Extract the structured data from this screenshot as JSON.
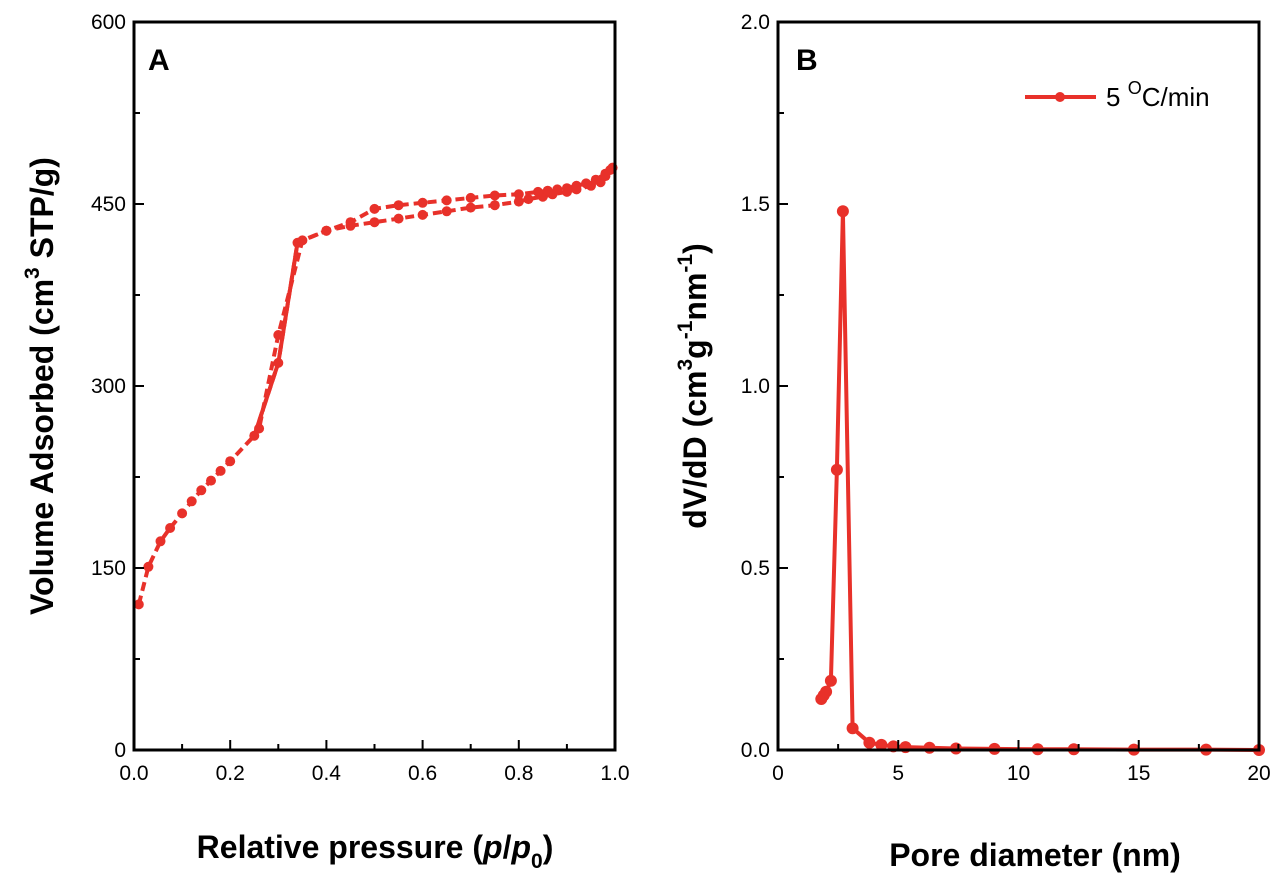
{
  "colors": {
    "series": "#e8312a",
    "axis": "#000000"
  },
  "chart_data": [
    {
      "type": "line",
      "panel_label": "A",
      "xlabel": {
        "prefix": "Relative pressure (",
        "p": "p",
        "slash": "/",
        "p0": "p",
        "sub0": "0",
        "suffix": ")"
      },
      "ylabel": {
        "prefix": "Volume Adsorbed (cm",
        "sup": "3",
        "suffix": " STP/g)"
      },
      "xlim": [
        0,
        1.0
      ],
      "ylim": [
        0,
        600
      ],
      "xticks": [
        "0.0",
        "0.2",
        "0.4",
        "0.6",
        "0.8",
        "1.0"
      ],
      "yticks": [
        "0",
        "150",
        "300",
        "450",
        "600"
      ],
      "series": [
        {
          "role": "adsorption",
          "x": [
            0.01,
            0.03,
            0.055,
            0.075,
            0.1,
            0.12,
            0.14,
            0.16,
            0.18,
            0.2,
            0.25,
            0.3,
            0.34,
            0.4,
            0.45,
            0.5,
            0.55,
            0.6,
            0.65,
            0.7,
            0.75,
            0.8,
            0.82,
            0.85,
            0.87,
            0.9,
            0.92,
            0.95,
            0.97,
            0.98,
            0.99
          ],
          "y": [
            120,
            151,
            172,
            183,
            195,
            205,
            214,
            222,
            230,
            238,
            259,
            319,
            418,
            428,
            432,
            435,
            438,
            441,
            444,
            447,
            449,
            452,
            454,
            456,
            458,
            460,
            462,
            465,
            468,
            473,
            478
          ]
        },
        {
          "role": "desorption",
          "x": [
            0.995,
            0.98,
            0.96,
            0.94,
            0.92,
            0.9,
            0.88,
            0.86,
            0.84,
            0.8,
            0.75,
            0.7,
            0.65,
            0.6,
            0.55,
            0.5,
            0.45,
            0.4,
            0.35,
            0.3,
            0.26
          ],
          "y": [
            480,
            475,
            470,
            467,
            465,
            463,
            462,
            461,
            460,
            458,
            457,
            455,
            453,
            451,
            449,
            446,
            435,
            428,
            420,
            342,
            265
          ]
        }
      ]
    },
    {
      "type": "line",
      "panel_label": "B",
      "xlabel": "Pore diameter (nm)",
      "ylabel": {
        "prefix": "dV/dD (cm",
        "sup1": "3",
        "mid1": "g",
        "sup2": "-1",
        "mid2": "nm",
        "sup3": "-1",
        "suffix": ")"
      },
      "xlim": [
        0,
        20
      ],
      "ylim": [
        0,
        2.0
      ],
      "xticks": [
        "0",
        "5",
        "10",
        "15",
        "20"
      ],
      "yticks": [
        "0.0",
        "0.5",
        "1.0",
        "1.5",
        "2.0"
      ],
      "legend": {
        "text_pre": "5 ",
        "sup": "O",
        "text_post": "C/min",
        "position": "top-right"
      },
      "series": [
        {
          "name": "5 OC/min",
          "x": [
            1.8,
            1.9,
            2.0,
            2.2,
            2.45,
            2.7,
            3.1,
            3.8,
            4.3,
            4.8,
            5.3,
            6.3,
            7.4,
            9.0,
            10.8,
            12.3,
            14.8,
            17.8,
            20.0
          ],
          "y": [
            0.14,
            0.15,
            0.16,
            0.19,
            0.77,
            1.48,
            0.06,
            0.02,
            0.014,
            0.01,
            0.008,
            0.006,
            0.004,
            0.003,
            0.002,
            0.002,
            0.001,
            0.001,
            0.0
          ]
        }
      ]
    }
  ]
}
